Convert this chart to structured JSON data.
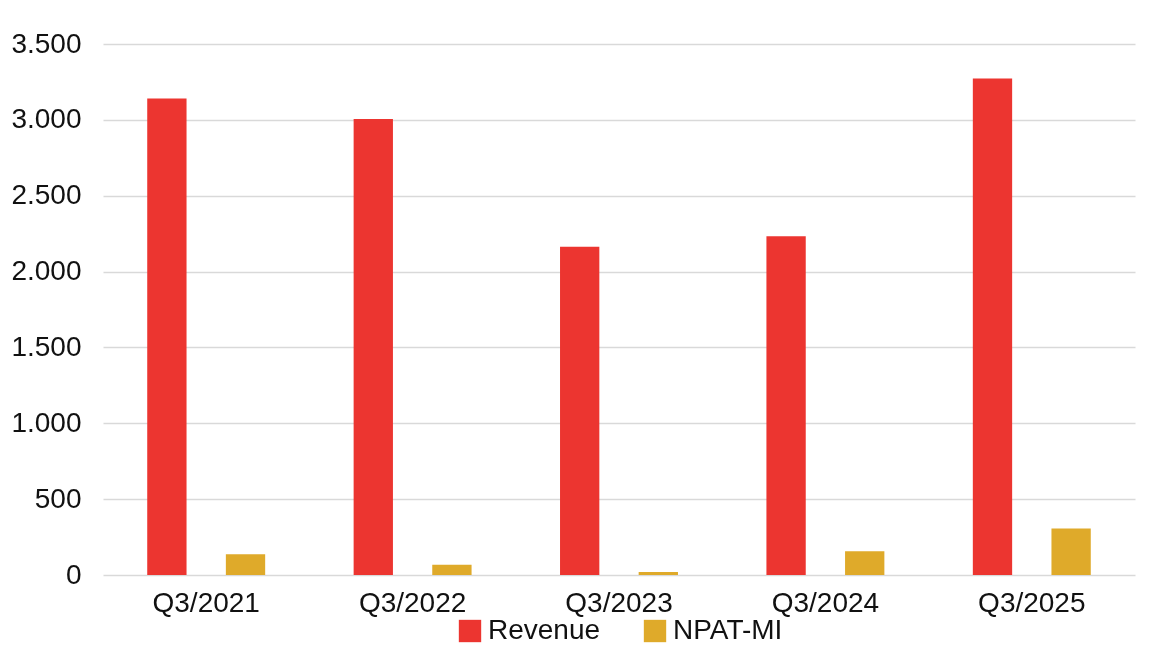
{
  "chart_data": {
    "type": "bar",
    "categories": [
      "Q3/2021",
      "Q3/2022",
      "Q3/2023",
      "Q3/2024",
      "Q3/2025"
    ],
    "series": [
      {
        "name": "Revenue",
        "color": "#ec3530",
        "values": [
          3140,
          3005,
          2163,
          2232,
          3272
        ]
      },
      {
        "name": "NPAT-MI",
        "color": "#dfaa2a",
        "values": [
          136,
          68,
          20,
          157,
          306
        ]
      }
    ],
    "ylim": [
      0,
      3500
    ],
    "yticks": [
      {
        "value": 0,
        "label": "0"
      },
      {
        "value": 500,
        "label": "500"
      },
      {
        "value": 1000,
        "label": "1.000"
      },
      {
        "value": 1500,
        "label": "1.500"
      },
      {
        "value": 2000,
        "label": "2.000"
      },
      {
        "value": 2500,
        "label": "2.500"
      },
      {
        "value": 3000,
        "label": "3.000"
      },
      {
        "value": 3500,
        "label": "3.500"
      }
    ],
    "grid": "y",
    "legend": "bottom"
  }
}
